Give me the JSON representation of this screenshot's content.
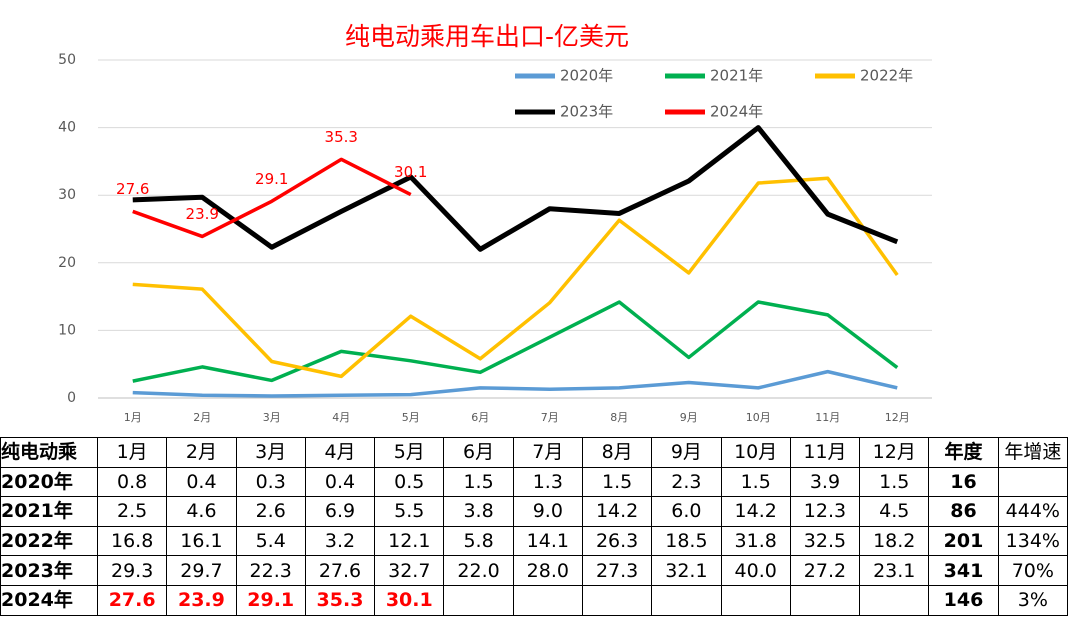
{
  "chart_data": {
    "type": "line",
    "title": "纯电动乘用车出口-亿美元",
    "categories": [
      "1月",
      "2月",
      "3月",
      "4月",
      "5月",
      "6月",
      "7月",
      "8月",
      "9月",
      "10月",
      "11月",
      "12月"
    ],
    "ylim": [
      0,
      50
    ],
    "yticks": [
      0,
      10,
      20,
      30,
      40,
      50
    ],
    "grid": true,
    "series": [
      {
        "name": "2020年",
        "color": "#5b9bd5",
        "values": [
          0.8,
          0.4,
          0.3,
          0.4,
          0.5,
          1.5,
          1.3,
          1.5,
          2.3,
          1.5,
          3.9,
          1.5
        ]
      },
      {
        "name": "2021年",
        "color": "#00b050",
        "values": [
          2.5,
          4.6,
          2.6,
          6.9,
          5.5,
          3.8,
          9.0,
          14.2,
          6.0,
          14.2,
          12.3,
          4.5
        ]
      },
      {
        "name": "2022年",
        "color": "#ffc000",
        "values": [
          16.8,
          16.1,
          5.4,
          3.2,
          12.1,
          5.8,
          14.1,
          26.3,
          18.5,
          31.8,
          32.5,
          18.2
        ]
      },
      {
        "name": "2023年",
        "color": "#000000",
        "values": [
          29.3,
          29.7,
          22.3,
          27.6,
          32.7,
          22.0,
          28.0,
          27.3,
          32.1,
          40.0,
          27.2,
          23.1
        ]
      },
      {
        "name": "2024年",
        "color": "#ff0000",
        "labels": true,
        "values": [
          27.6,
          23.9,
          29.1,
          35.3,
          30.1,
          null,
          null,
          null,
          null,
          null,
          null,
          null
        ]
      }
    ]
  },
  "table": {
    "header": [
      "纯电动乘",
      "1月",
      "2月",
      "3月",
      "4月",
      "5月",
      "6月",
      "7月",
      "8月",
      "9月",
      "10月",
      "11月",
      "12月",
      "年度",
      "年增速"
    ],
    "rows": [
      [
        "2020年",
        "0.8",
        "0.4",
        "0.3",
        "0.4",
        "0.5",
        "1.5",
        "1.3",
        "1.5",
        "2.3",
        "1.5",
        "3.9",
        "1.5",
        "16",
        null
      ],
      [
        "2021年",
        "2.5",
        "4.6",
        "2.6",
        "6.9",
        "5.5",
        "3.8",
        "9.0",
        "14.2",
        "6.0",
        "14.2",
        "12.3",
        "4.5",
        "86",
        "444%"
      ],
      [
        "2022年",
        "16.8",
        "16.1",
        "5.4",
        "3.2",
        "12.1",
        "5.8",
        "14.1",
        "26.3",
        "18.5",
        "31.8",
        "32.5",
        "18.2",
        "201",
        "134%"
      ],
      [
        "2023年",
        "29.3",
        "29.7",
        "22.3",
        "27.6",
        "32.7",
        "22.0",
        "28.0",
        "27.3",
        "32.1",
        "40.0",
        "27.2",
        "23.1",
        "341",
        "70%"
      ],
      [
        "2024年",
        "27.6",
        "23.9",
        "29.1",
        "35.3",
        "30.1",
        null,
        null,
        null,
        null,
        null,
        null,
        null,
        "146",
        "3%"
      ]
    ]
  }
}
